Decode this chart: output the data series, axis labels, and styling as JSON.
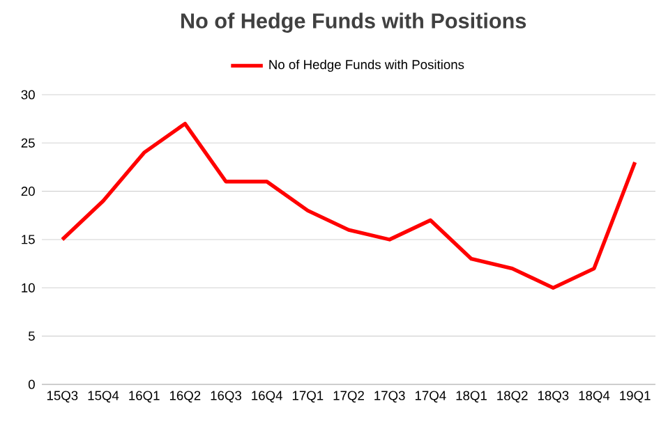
{
  "chart_data": {
    "type": "line",
    "title": "No of Hedge Funds with Positions",
    "categories": [
      "15Q3",
      "15Q4",
      "16Q1",
      "16Q2",
      "16Q3",
      "16Q4",
      "17Q1",
      "17Q2",
      "17Q3",
      "17Q4",
      "18Q1",
      "18Q2",
      "18Q3",
      "18Q4",
      "19Q1"
    ],
    "series": [
      {
        "name": "No of Hedge Funds with Positions",
        "color": "#ff0000",
        "values": [
          15,
          19,
          24,
          27,
          21,
          21,
          18,
          16,
          15,
          17,
          13,
          12,
          10,
          12,
          23
        ]
      }
    ],
    "ylim": [
      0,
      30
    ],
    "yticks": [
      0,
      5,
      10,
      15,
      20,
      25,
      30
    ],
    "grid": "y",
    "legend": "top"
  }
}
